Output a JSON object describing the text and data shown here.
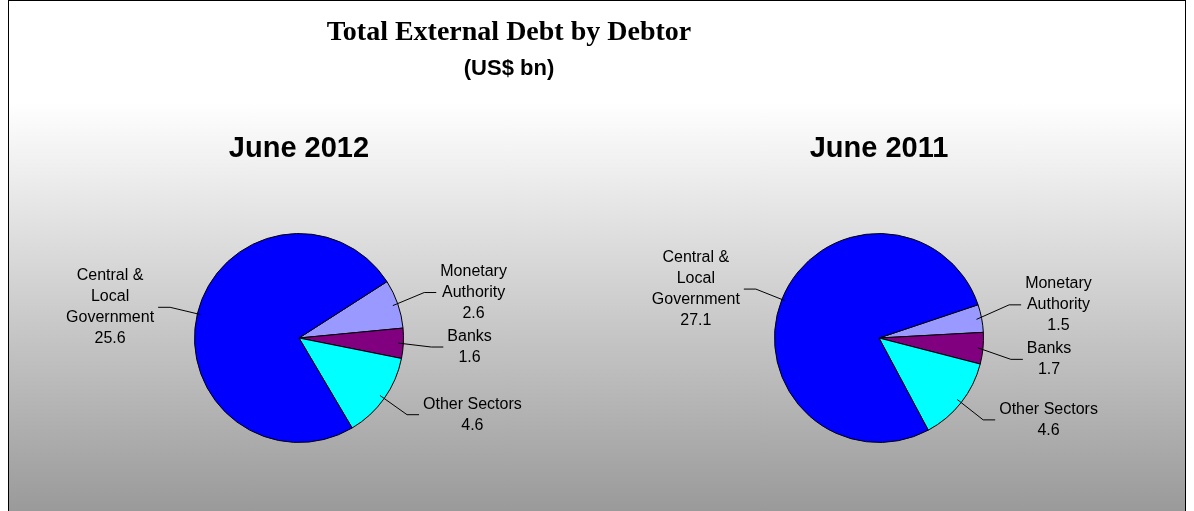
{
  "chart_data": [
    {
      "type": "other",
      "title": "Total External Debt by Debtor",
      "subtitle": "(US$ bn)"
    },
    {
      "type": "pie",
      "title": "June 2012",
      "categories": [
        "Monetary Authority",
        "Banks",
        "Other Sectors",
        "Central & Local Government"
      ],
      "values": [
        2.6,
        1.6,
        4.6,
        25.6
      ],
      "colors": [
        "#9999ff",
        "#800080",
        "#00ffff",
        "#0000ff"
      ],
      "data_labels": true
    },
    {
      "type": "pie",
      "title": "June  2011",
      "categories": [
        "Monetary Authority",
        "Banks",
        "Other Sectors",
        "Central & Local Government"
      ],
      "values": [
        1.5,
        1.7,
        4.6,
        27.1
      ],
      "colors": [
        "#9999ff",
        "#800080",
        "#00ffff",
        "#0000ff"
      ],
      "data_labels": true
    }
  ]
}
